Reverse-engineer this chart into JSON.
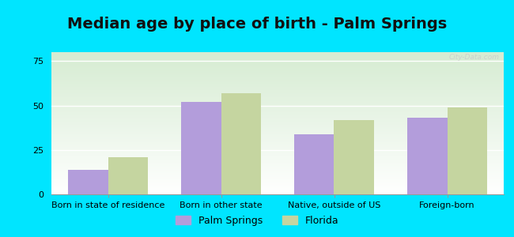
{
  "title": "Median age by place of birth - Palm Springs",
  "categories": [
    "Born in state of residence",
    "Born in other state",
    "Native, outside of US",
    "Foreign-born"
  ],
  "palm_springs": [
    14,
    52,
    34,
    43
  ],
  "florida": [
    21,
    57,
    42,
    49
  ],
  "palm_springs_color": "#b39ddb",
  "florida_color": "#c5d5a0",
  "bar_width": 0.35,
  "ylim": [
    0,
    80
  ],
  "yticks": [
    0,
    25,
    50,
    75
  ],
  "bg_outer": "#00e5ff",
  "bg_inner_top": "#d6ecd2",
  "bg_inner_bottom": "#ffffff",
  "legend_ps_label": "Palm Springs",
  "legend_fl_label": "Florida",
  "title_fontsize": 14,
  "axis_label_fontsize": 8,
  "legend_fontsize": 9,
  "watermark": "City-Data.com"
}
